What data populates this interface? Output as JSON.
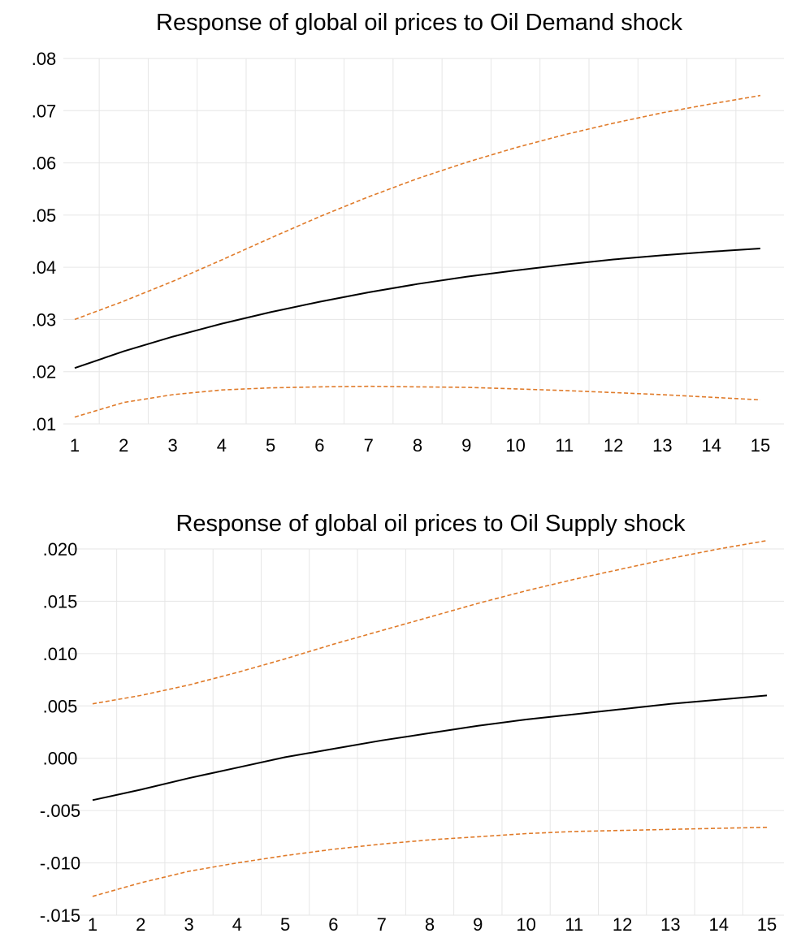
{
  "chart_data": [
    {
      "type": "line",
      "title": "Response of global oil prices to Oil Demand shock",
      "xlabel": "",
      "ylabel": "",
      "x": [
        1,
        2,
        3,
        4,
        5,
        6,
        7,
        8,
        9,
        10,
        11,
        12,
        13,
        14,
        15
      ],
      "ylim": [
        0.01,
        0.08
      ],
      "yticks": [
        0.01,
        0.02,
        0.03,
        0.04,
        0.05,
        0.06,
        0.07,
        0.08
      ],
      "ytick_labels": [
        ".01",
        ".02",
        ".03",
        ".04",
        ".05",
        ".06",
        ".07",
        ".08"
      ],
      "grid": true,
      "legend": "none",
      "series": [
        {
          "role": "response",
          "color": "#000000",
          "style": "solid",
          "values": [
            0.0207,
            0.0239,
            0.0267,
            0.0292,
            0.0314,
            0.0334,
            0.0352,
            0.0368,
            0.0382,
            0.0394,
            0.0405,
            0.0415,
            0.0423,
            0.043,
            0.0436
          ]
        },
        {
          "role": "upper_band",
          "color": "#e07b2a",
          "style": "dashed",
          "values": [
            0.03,
            0.0335,
            0.0373,
            0.0414,
            0.0456,
            0.0497,
            0.0535,
            0.057,
            0.0601,
            0.0629,
            0.0654,
            0.0676,
            0.0696,
            0.0713,
            0.0729
          ]
        },
        {
          "role": "lower_band",
          "color": "#e07b2a",
          "style": "dashed",
          "values": [
            0.0113,
            0.0141,
            0.0156,
            0.0165,
            0.0169,
            0.0171,
            0.0172,
            0.0171,
            0.017,
            0.0167,
            0.0164,
            0.016,
            0.0156,
            0.0151,
            0.0146
          ]
        }
      ]
    },
    {
      "type": "line",
      "title": "Response of global oil prices to Oil Supply shock",
      "xlabel": "",
      "ylabel": "",
      "x": [
        1,
        2,
        3,
        4,
        5,
        6,
        7,
        8,
        9,
        10,
        11,
        12,
        13,
        14,
        15
      ],
      "ylim": [
        -0.015,
        0.02
      ],
      "yticks": [
        -0.015,
        -0.01,
        -0.005,
        0.0,
        0.005,
        0.01,
        0.015,
        0.02
      ],
      "ytick_labels": [
        "-.015",
        "-.010",
        "-.005",
        ".000",
        ".005",
        ".010",
        ".015",
        ".020"
      ],
      "grid": true,
      "legend": "none",
      "series": [
        {
          "role": "response",
          "color": "#000000",
          "style": "solid",
          "values": [
            -0.004,
            -0.003,
            -0.0019,
            -0.0009,
            0.0001,
            0.0009,
            0.0017,
            0.0024,
            0.0031,
            0.0037,
            0.0042,
            0.0047,
            0.0052,
            0.0056,
            0.006
          ]
        },
        {
          "role": "upper_band",
          "color": "#e07b2a",
          "style": "dashed",
          "values": [
            0.0052,
            0.006,
            0.007,
            0.0082,
            0.0095,
            0.0109,
            0.0122,
            0.0135,
            0.0148,
            0.016,
            0.0171,
            0.0181,
            0.0191,
            0.02,
            0.0208
          ]
        },
        {
          "role": "lower_band",
          "color": "#e07b2a",
          "style": "dashed",
          "values": [
            -0.0132,
            -0.0119,
            -0.0108,
            -0.01,
            -0.0093,
            -0.0087,
            -0.0082,
            -0.0078,
            -0.0075,
            -0.0072,
            -0.007,
            -0.0069,
            -0.0068,
            -0.0067,
            -0.0066
          ]
        }
      ]
    }
  ]
}
